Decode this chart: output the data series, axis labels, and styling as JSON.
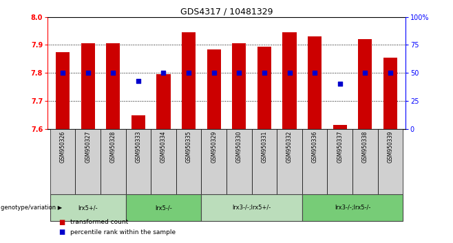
{
  "title": "GDS4317 / 10481329",
  "samples": [
    "GSM950326",
    "GSM950327",
    "GSM950328",
    "GSM950333",
    "GSM950334",
    "GSM950335",
    "GSM950329",
    "GSM950330",
    "GSM950331",
    "GSM950332",
    "GSM950336",
    "GSM950337",
    "GSM950338",
    "GSM950339"
  ],
  "bar_values": [
    7.875,
    7.905,
    7.905,
    7.648,
    7.795,
    7.945,
    7.885,
    7.905,
    7.895,
    7.945,
    7.93,
    7.615,
    7.92,
    7.855
  ],
  "bar_base": 7.6,
  "percentile_values": [
    50,
    50,
    50,
    43,
    50,
    50,
    50,
    50,
    50,
    50,
    50,
    40,
    50,
    50
  ],
  "ylim": [
    7.6,
    8.0
  ],
  "yticks": [
    7.6,
    7.7,
    7.8,
    7.9,
    8.0
  ],
  "y2lim": [
    0,
    100
  ],
  "y2ticks": [
    0,
    25,
    50,
    75,
    100
  ],
  "y2ticklabels": [
    "0",
    "25",
    "50",
    "75",
    "100%"
  ],
  "bar_color": "#cc0000",
  "dot_color": "#0000cc",
  "groups": [
    {
      "label": "lrx5+/-",
      "start": 0,
      "end": 3,
      "color": "#bbddbb"
    },
    {
      "label": "lrx5-/-",
      "start": 3,
      "end": 6,
      "color": "#77cc77"
    },
    {
      "label": "lrx3-/-;lrx5+/-",
      "start": 6,
      "end": 10,
      "color": "#bbddbb"
    },
    {
      "label": "lrx3-/-;lrx5-/-",
      "start": 10,
      "end": 14,
      "color": "#77cc77"
    }
  ],
  "xlabel_genotype": "genotype/variation",
  "legend_items": [
    {
      "color": "#cc0000",
      "label": "transformed count"
    },
    {
      "color": "#0000cc",
      "label": "percentile rank within the sample"
    }
  ],
  "title_fontsize": 9,
  "tick_fontsize": 7,
  "bar_width": 0.55
}
